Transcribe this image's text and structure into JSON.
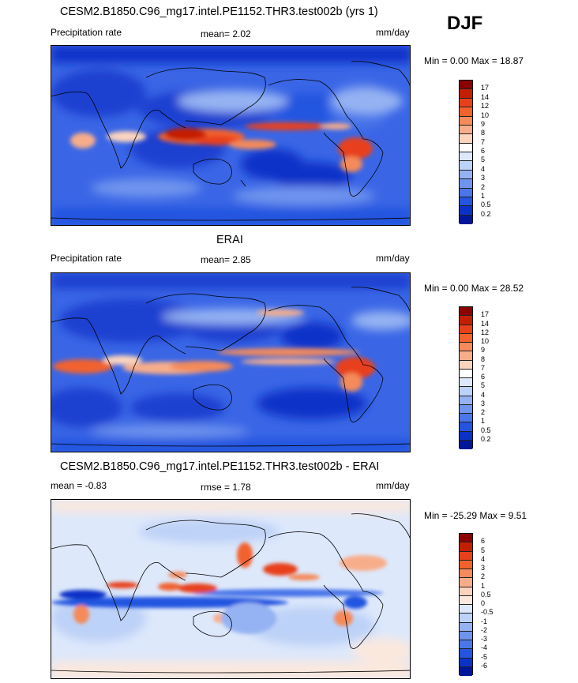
{
  "season": "DJF",
  "panels": [
    {
      "title": "CESM2.B1850.C96_mg17.intel.PE1152.THR3.test002b (yrs 1)",
      "left_label": "Precipitation rate",
      "mid_label": "mean=   2.02",
      "units": "mm/day",
      "minmax": "Min =   0.00 Max =  18.87",
      "colorbar": {
        "colors": [
          "#8b0000",
          "#c41e00",
          "#e8401a",
          "#f2622d",
          "#f58a5a",
          "#f8ad8a",
          "#fbd4bd",
          "#ffffff",
          "#dde8fb",
          "#bdd2f8",
          "#95b3f3",
          "#6f94ee",
          "#4a76ea",
          "#2454e0",
          "#0a32c8",
          "#00169a"
        ],
        "labels": [
          "17",
          "14",
          "12",
          "10",
          "9",
          "8",
          "7",
          "6",
          "5",
          "4",
          "3",
          "2",
          "1",
          "0.5",
          "0.2"
        ]
      }
    },
    {
      "title": "ERAI",
      "left_label": "Precipitation rate",
      "mid_label": "mean=   2.85",
      "units": "mm/day",
      "minmax": "Min =   0.00 Max =  28.52",
      "colorbar": {
        "colors": [
          "#8b0000",
          "#c41e00",
          "#e8401a",
          "#f2622d",
          "#f58a5a",
          "#f8ad8a",
          "#fbd4bd",
          "#ffffff",
          "#dde8fb",
          "#bdd2f8",
          "#95b3f3",
          "#6f94ee",
          "#4a76ea",
          "#2454e0",
          "#0a32c8",
          "#00169a"
        ],
        "labels": [
          "17",
          "14",
          "12",
          "10",
          "9",
          "8",
          "7",
          "6",
          "5",
          "4",
          "3",
          "2",
          "1",
          "0.5",
          "0.2"
        ]
      }
    },
    {
      "title": "CESM2.B1850.C96_mg17.intel.PE1152.THR3.test002b - ERAI",
      "left_label": "mean =  -0.83",
      "mid_label": "rmse =   1.78",
      "units": "mm/day",
      "minmax": "Min = -25.29 Max =   9.51",
      "colorbar": {
        "colors": [
          "#8b0000",
          "#c41e00",
          "#e8401a",
          "#f2622d",
          "#f58a5a",
          "#f8ad8a",
          "#fbd4bd",
          "#fbe8dd",
          "#dde8fb",
          "#bdd2f8",
          "#95b3f3",
          "#6f94ee",
          "#4a76ea",
          "#2454e0",
          "#0a32c8",
          "#00169a"
        ],
        "labels": [
          "6",
          "5",
          "4",
          "3",
          "2",
          "1",
          "0.5",
          "0",
          "-0.5",
          "-1",
          "-2",
          "-3",
          "-4",
          "-5",
          "-6"
        ]
      }
    }
  ]
}
